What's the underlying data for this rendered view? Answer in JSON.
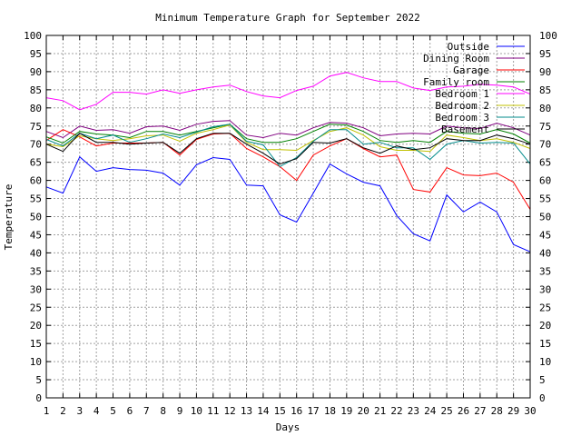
{
  "chart_data": {
    "type": "line",
    "title": "Minimum Temperature Graph for September 2022",
    "xlabel": "Days",
    "ylabel": "Temperature",
    "xlim": [
      1,
      30
    ],
    "ylim": [
      0,
      100
    ],
    "yticks": [
      0,
      5,
      10,
      15,
      20,
      25,
      30,
      35,
      40,
      45,
      50,
      55,
      60,
      65,
      70,
      75,
      80,
      85,
      90,
      95,
      100
    ],
    "x": [
      1,
      2,
      3,
      4,
      5,
      6,
      7,
      8,
      9,
      10,
      11,
      12,
      13,
      14,
      15,
      16,
      17,
      18,
      19,
      20,
      21,
      22,
      23,
      24,
      25,
      26,
      27,
      28,
      29,
      30
    ],
    "grid": true,
    "legend_position": "top-right",
    "series": [
      {
        "name": "Outside",
        "color": "#0000ff",
        "values": [
          58.2,
          56.5,
          66.5,
          62.5,
          63.5,
          63.0,
          62.8,
          62.0,
          58.7,
          64.3,
          66.3,
          65.8,
          58.7,
          58.5,
          50.5,
          48.5,
          56.5,
          64.5,
          61.8,
          59.5,
          58.5,
          50.3,
          45.3,
          43.3,
          56.0,
          51.3,
          54.0,
          51.3,
          42.3,
          40.3
        ]
      },
      {
        "name": "Dining Room",
        "color": "#800080",
        "values": [
          73.5,
          71.8,
          75.0,
          73.8,
          74.0,
          73.0,
          74.8,
          75.0,
          73.8,
          75.5,
          76.3,
          76.5,
          72.5,
          71.8,
          73.0,
          72.5,
          74.5,
          76.0,
          75.8,
          74.5,
          72.3,
          72.8,
          73.0,
          72.8,
          75.0,
          74.5,
          74.3,
          75.8,
          74.5,
          72.5
        ]
      },
      {
        "name": "Garage",
        "color": "#ff0000",
        "values": [
          71.0,
          74.0,
          72.0,
          69.5,
          70.3,
          70.3,
          70.3,
          70.5,
          67.0,
          71.3,
          72.8,
          73.0,
          68.8,
          66.5,
          63.8,
          60.0,
          67.0,
          69.5,
          71.5,
          68.8,
          66.5,
          67.0,
          57.5,
          56.8,
          63.5,
          61.5,
          61.3,
          62.0,
          59.5,
          52.0
        ]
      },
      {
        "name": "Family room",
        "color": "#008000",
        "values": [
          72.0,
          70.3,
          73.5,
          72.8,
          72.5,
          71.8,
          73.5,
          73.5,
          72.5,
          73.5,
          74.5,
          75.5,
          71.5,
          70.5,
          70.5,
          71.5,
          73.5,
          75.5,
          75.3,
          73.5,
          71.0,
          70.5,
          71.0,
          70.5,
          73.5,
          73.0,
          72.8,
          74.0,
          72.8,
          70.3
        ]
      },
      {
        "name": "Bedroom 1",
        "color": "#ff00ff",
        "values": [
          82.8,
          82.0,
          79.5,
          81.0,
          84.3,
          84.3,
          83.8,
          85.0,
          84.0,
          85.0,
          85.8,
          86.3,
          84.5,
          83.3,
          82.8,
          84.8,
          86.0,
          88.8,
          89.8,
          88.3,
          87.3,
          87.3,
          85.5,
          84.8,
          85.8,
          86.0,
          86.5,
          86.3,
          85.8,
          83.8
        ]
      },
      {
        "name": "Bedroom 2",
        "color": "#c0c000",
        "values": [
          70.0,
          69.3,
          72.3,
          71.5,
          71.0,
          71.5,
          72.3,
          72.5,
          70.8,
          73.0,
          74.0,
          75.3,
          70.5,
          68.5,
          68.5,
          68.3,
          71.0,
          73.5,
          74.5,
          72.5,
          69.3,
          68.3,
          68.3,
          68.0,
          72.5,
          71.8,
          71.0,
          71.5,
          70.5,
          68.8
        ]
      },
      {
        "name": "Bedroom 3",
        "color": "#008b8b",
        "values": [
          71.3,
          69.5,
          73.0,
          71.5,
          72.5,
          70.5,
          71.5,
          72.8,
          71.8,
          73.3,
          74.8,
          75.5,
          70.8,
          69.8,
          63.8,
          66.3,
          70.8,
          74.0,
          74.0,
          70.0,
          70.5,
          69.0,
          69.0,
          65.8,
          70.0,
          71.0,
          70.3,
          70.5,
          70.3,
          64.5
        ]
      },
      {
        "name": "Basement",
        "color": "#000000",
        "values": [
          70.0,
          68.0,
          73.0,
          70.5,
          70.5,
          70.0,
          70.3,
          70.5,
          67.5,
          71.5,
          73.0,
          73.0,
          70.0,
          67.5,
          64.5,
          66.0,
          70.5,
          70.3,
          71.5,
          69.0,
          67.5,
          69.5,
          68.5,
          69.0,
          71.5,
          71.0,
          71.0,
          72.5,
          71.5,
          70.0
        ]
      }
    ]
  }
}
